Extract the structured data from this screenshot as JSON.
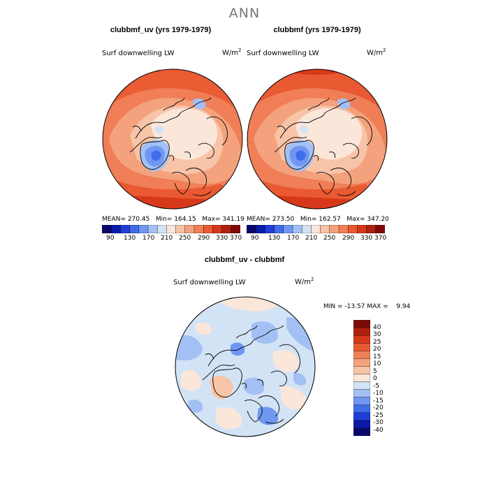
{
  "main_title": "ANN",
  "panels": [
    {
      "title": "clubbmf_uv (yrs 1979-1979)",
      "variable": "Surf downwelling LW",
      "unit_base": "W/m",
      "unit_exp": "2",
      "stats": {
        "mean_label": "MEAN=",
        "mean": "270.45",
        "min_label": "Min=",
        "min": "164.15",
        "max_label": "Max=",
        "max": "341.19"
      }
    },
    {
      "title": "clubbmf (yrs 1979-1979)",
      "variable": "Surf downwelling LW",
      "unit_base": "W/m",
      "unit_exp": "2",
      "stats": {
        "mean_label": "MEAN=",
        "mean": "273.50",
        "min_label": "Min=",
        "min": "162.57",
        "max_label": "Max=",
        "max": "347.20"
      }
    },
    {
      "title": "clubbmf_uv - clubbmf",
      "variable": "Surf downwelling LW",
      "unit_base": "W/m",
      "unit_exp": "2",
      "stats": {
        "min_label": "MIN =",
        "min": "-13.57",
        "max_label": "MAX =",
        "max": "9.94"
      }
    }
  ],
  "colorbar_top": {
    "labels": [
      "90",
      "130",
      "170",
      "210",
      "250",
      "290",
      "330",
      "370"
    ],
    "colors": [
      "#08086b",
      "#0a1aa8",
      "#1f3fd8",
      "#3f6ce8",
      "#6f97f2",
      "#a3c0f4",
      "#d3e3f6",
      "#fbe6da",
      "#f8c4a8",
      "#f4a27d",
      "#f07e56",
      "#e95a32",
      "#d8381a",
      "#b0200e",
      "#7d0a06"
    ]
  },
  "colorbar_diff": {
    "labels": [
      "40",
      "30",
      "25",
      "20",
      "15",
      "10",
      "5",
      "0",
      "-5",
      "-10",
      "-15",
      "-20",
      "-25",
      "-30",
      "-40"
    ],
    "colors": [
      "#7d0a06",
      "#b0200e",
      "#d8381a",
      "#e95a32",
      "#f07e56",
      "#f4a27d",
      "#f8c4a8",
      "#fbe6da",
      "#d3e3f6",
      "#a3c0f4",
      "#6f97f2",
      "#3f6ce8",
      "#1f3fd8",
      "#0a1aa8",
      "#08086b"
    ]
  }
}
